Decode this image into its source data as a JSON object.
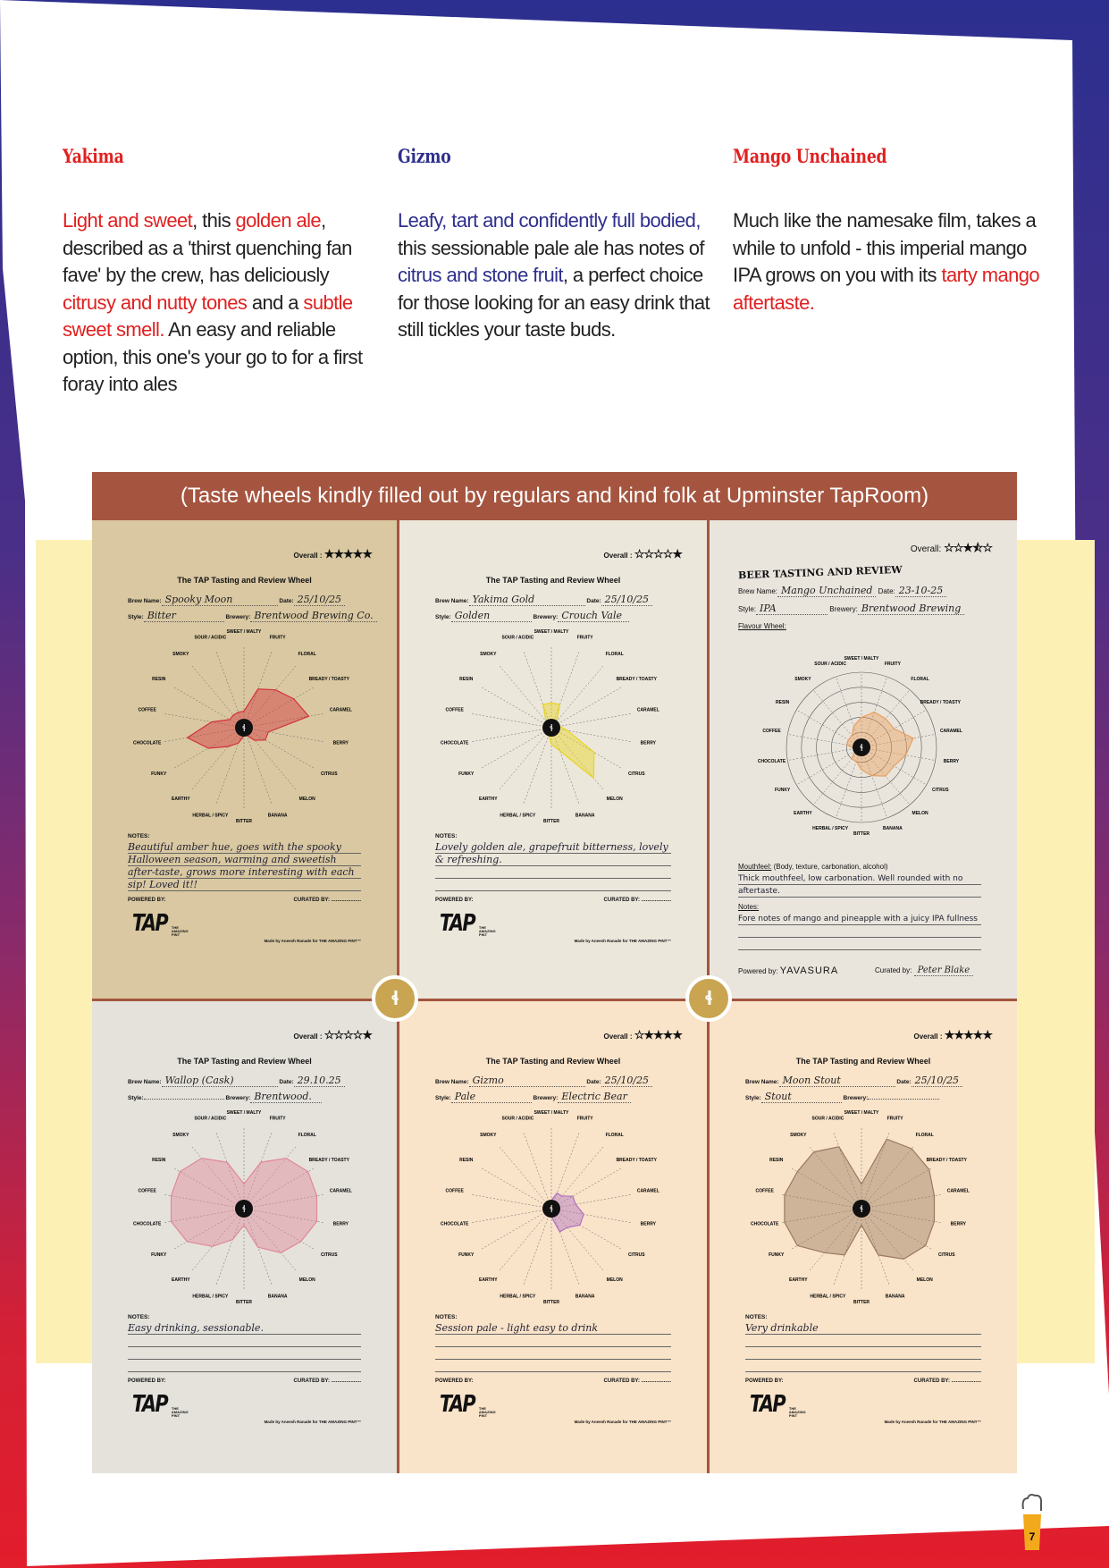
{
  "columns": [
    {
      "heading": "Yakima",
      "heading_color": "#e02020",
      "segments": [
        {
          "t": "Light and sweet",
          "c": "red"
        },
        {
          "t": ", this "
        },
        {
          "t": "golden ale",
          "c": "red"
        },
        {
          "t": ", described as a 'thirst quenching fan fave' by the crew, has deliciously "
        },
        {
          "t": "citrusy and nutty tones",
          "c": "red"
        },
        {
          "t": " and a "
        },
        {
          "t": "subtle sweet smell.",
          "c": "red"
        },
        {
          "t": " An easy and reliable option, this one's your go to for a first foray into ales"
        }
      ]
    },
    {
      "heading": "Gizmo",
      "heading_color": "#2e2f8c",
      "segments": [
        {
          "t": "Leafy, tart and confidently full bodied,",
          "c": "blue"
        },
        {
          "t": " this sessionable pale ale has notes of "
        },
        {
          "t": "citrus and stone fruit",
          "c": "blue"
        },
        {
          "t": ", a perfect choice for those looking for an easy drink that still tickles your taste buds."
        }
      ]
    },
    {
      "heading": "Mango Unchained",
      "heading_color": "#e02020",
      "segments": [
        {
          "t": "Much like the namesake film, takes a while to unfold - this imperial mango IPA grows on you with its "
        },
        {
          "t": "tarty mango aftertaste.",
          "c": "red"
        }
      ]
    }
  ],
  "banner": "(Taste wheels kindly filled out by regulars and kind folk at Upminster TapRoom)",
  "flavours": [
    "SWEET / MALTY",
    "FRUITY",
    "FLORAL",
    "BREADY / TOASTY",
    "CARAMEL",
    "BERRY",
    "CITRUS",
    "MELON",
    "BANANA",
    "BITTER",
    "HERBAL / SPICY",
    "EARTHY",
    "FUNKY",
    "CHOCOLATE",
    "COFFEE",
    "RESIN",
    "SMOKY",
    "SOUR / ACIDIC"
  ],
  "labels": {
    "overall": "Overall :",
    "brew_name": "Brew Name:",
    "date": "Date:",
    "style": "Style:",
    "brewery": "Brewery:",
    "notes": "NOTES:",
    "powered_by": "POWERED BY:",
    "curated_by": "CURATED BY: ....................",
    "logo": "TAP",
    "logo_sub": "THE AMAZING PINT",
    "made_by": "Made by Aneesh Ranade for THE AMAZING PINT™"
  },
  "sheets": [
    {
      "type": "tap",
      "title": "The TAP Tasting and Review Wheel",
      "rating": 5,
      "brew_name": "Spooky Moon",
      "date": "25/10/25",
      "style": "Bitter",
      "brewery": "Brentwood Brewing Co.",
      "notes": "Beautiful amber hue, goes with the spooky Halloween season, warming and sweetish after-taste, grows more interesting with each sip! Loved it!!",
      "paper": "#d9c8a2",
      "ink": "#d2343a",
      "values": [
        0.2,
        0.5,
        0.6,
        0.7,
        0.8,
        0.3,
        0.3,
        0.2,
        0.1,
        0.1,
        0.2,
        0.3,
        0.5,
        0.7,
        0.4,
        0.2,
        0.2,
        0.2
      ]
    },
    {
      "type": "tap",
      "title": "The TAP Tasting and Review Wheel",
      "rating": 1,
      "brew_name": "Yakima Gold",
      "date": "25/10/25",
      "style": "Golden",
      "brewery": "Crouch Vale",
      "notes": "Lovely golden ale, grapefruit bitterness, lovely & refreshing.",
      "paper": "#ece7db",
      "ink": "#e8d420",
      "values": [
        0.3,
        0.3,
        0.1,
        0.1,
        0.1,
        0.2,
        0.6,
        0.8,
        0.3,
        0.2,
        0.1,
        0.1,
        0.1,
        0.1,
        0.1,
        0.1,
        0.1,
        0.3
      ]
    },
    {
      "type": "review",
      "title": "BEER TASTING AND REVIEW",
      "rating": 2.5,
      "brew_name": "Mango Unchained",
      "date": "23-10-25",
      "style": "IPA",
      "brewery": "Brentwood Brewing",
      "flavour_wheel": "Flavour Wheel:",
      "mouthfeel_label": "Mouthfeel:",
      "mouthfeel_hint": "(Body, texture, carbonation, alcohol)",
      "mouthfeel": "Thick mouthfeel, low carbonation. Well rounded with no aftertaste.",
      "notes_label": "Notes:",
      "notes": "Fore notes of mango and pineapple with a juicy IPA fullness",
      "powered_label": "Powered by:",
      "powered": "YAVASURA",
      "curated_label": "Curated by:",
      "curated": "Peter Blake",
      "paper": "#e9e5dd",
      "ink": "#e8a060",
      "values": [
        0.4,
        0.5,
        0.5,
        0.5,
        0.7,
        0.6,
        0.5,
        0.5,
        0.4,
        0.3,
        0.2,
        0.2,
        0.1,
        0.1,
        0.2,
        0.2,
        0.2,
        0.3
      ]
    },
    {
      "type": "tap",
      "title": "The TAP Tasting and Review Wheel",
      "rating": 1,
      "brew_name": "Wallop (Cask)",
      "date": "29.10.25",
      "style": "",
      "brewery": "Brentwood.",
      "notes": "Easy drinking, sessionable.",
      "paper": "#e4e2db",
      "ink": "#e08898",
      "values": [
        0.3,
        0.6,
        0.8,
        0.9,
        0.9,
        0.9,
        0.8,
        0.7,
        0.5,
        0.2,
        0.4,
        0.6,
        0.8,
        0.9,
        0.9,
        0.9,
        0.8,
        0.6
      ]
    },
    {
      "type": "tap",
      "title": "The TAP Tasting and Review Wheel",
      "rating": 4,
      "brew_name": "Gizmo",
      "date": "25/10/25",
      "style": "Pale",
      "brewery": "Electric Bear",
      "notes": "Session pale - light easy to drink",
      "paper": "#f9e3c9",
      "ink": "#b070c0",
      "values": [
        0.1,
        0.2,
        0.2,
        0.3,
        0.3,
        0.4,
        0.4,
        0.3,
        0.3,
        0.1,
        0.1,
        0.1,
        0.1,
        0.1,
        0.1,
        0.1,
        0.1,
        0.1
      ]
    },
    {
      "type": "tap",
      "title": "The TAP Tasting and Review Wheel",
      "rating": 5,
      "brew_name": "Moon Stout",
      "date": "25/10/25",
      "style": "Stout",
      "brewery": "",
      "notes": "Very drinkable",
      "paper": "#f9e3c9",
      "ink": "#9a7a60",
      "values": [
        0.3,
        0.9,
        0.95,
        0.95,
        0.9,
        0.9,
        0.9,
        0.8,
        0.6,
        0.2,
        0.6,
        0.7,
        0.9,
        0.95,
        0.95,
        0.9,
        0.9,
        0.8
      ]
    }
  ],
  "page_number": "7",
  "colors": {
    "red": "#e02020",
    "blue": "#2e2f8c",
    "frame": "#a5553f",
    "band": "#fdf0b5",
    "badge": "#c9a552"
  }
}
